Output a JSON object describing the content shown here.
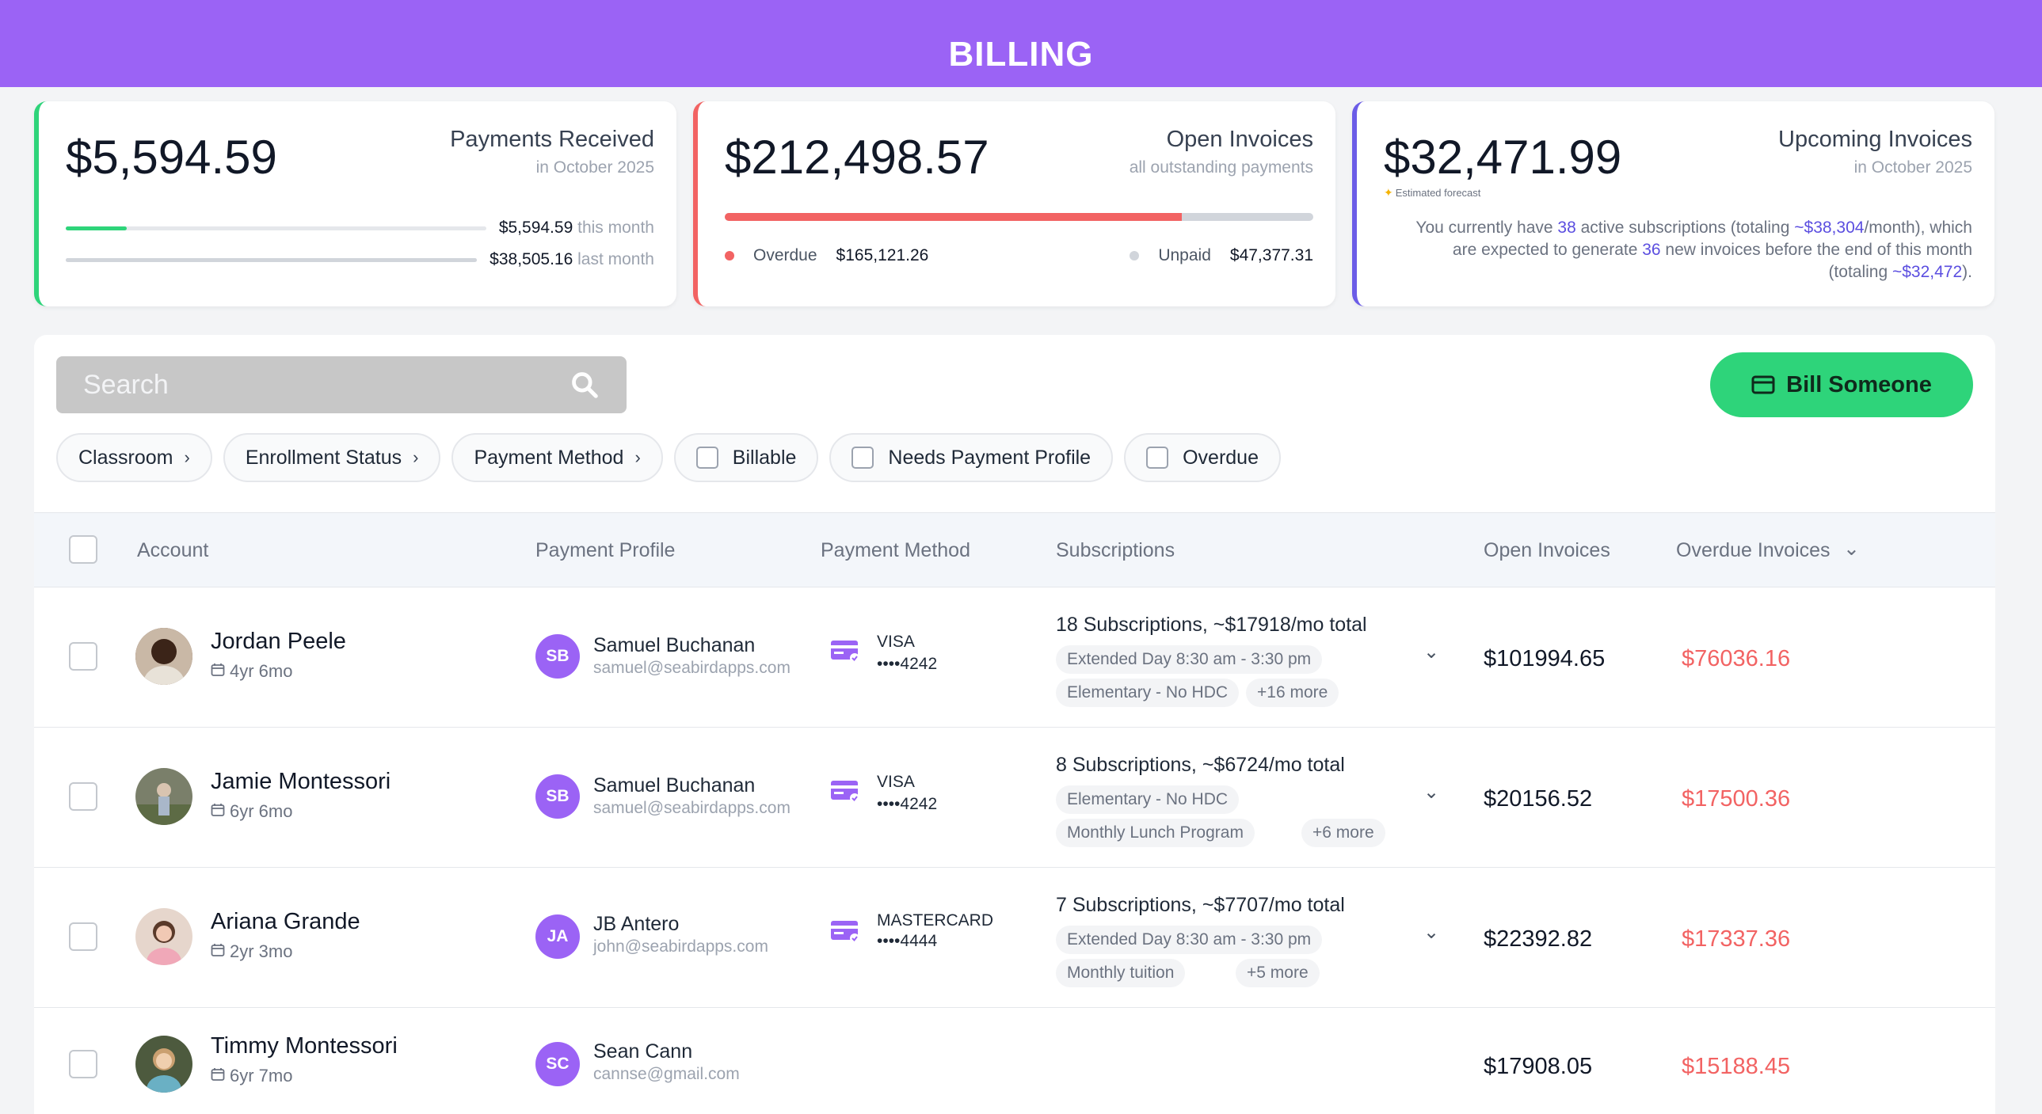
{
  "header": {
    "title": "BILLING"
  },
  "cards": {
    "payments": {
      "amount": "$5,594.59",
      "title": "Payments Received",
      "subtitle": "in October 2025",
      "this_month_value": "$5,594.59",
      "this_month_label": "this month",
      "last_month_value": "$38,505.16",
      "last_month_label": "last month",
      "this_month_fraction": 0.145,
      "last_month_fraction": 1.0,
      "color": "#2ed47a"
    },
    "open": {
      "amount": "$212,498.57",
      "title": "Open Invoices",
      "subtitle": "all outstanding payments",
      "overdue_label": "Overdue",
      "overdue_value": "$165,121.26",
      "unpaid_label": "Unpaid",
      "unpaid_value": "$47,377.31",
      "overdue_fraction": 0.777,
      "color": "#f26363"
    },
    "upcoming": {
      "amount": "$32,471.99",
      "title": "Upcoming Invoices",
      "subtitle": "in October 2025",
      "forecast_label": "Estimated forecast",
      "text_1": "You currently have ",
      "subs_count": "38",
      "text_2": " active subscriptions (totaling ",
      "subs_total": "~$38,304",
      "text_3": "/month), which are expected to generate ",
      "invoice_count": "36",
      "text_4": " new invoices before the end of this month (totaling ",
      "invoice_total": "~$32,472",
      "text_5": ").",
      "color": "#6b5ce7"
    }
  },
  "toolbar": {
    "search_placeholder": "Search",
    "bill_button": "Bill Someone"
  },
  "filters": {
    "classroom": "Classroom",
    "enrollment_status": "Enrollment Status",
    "payment_method": "Payment Method",
    "billable": "Billable",
    "needs_payment_profile": "Needs Payment Profile",
    "overdue": "Overdue"
  },
  "table": {
    "headers": {
      "account": "Account",
      "payment_profile": "Payment Profile",
      "payment_method": "Payment Method",
      "subscriptions": "Subscriptions",
      "open_invoices": "Open Invoices",
      "overdue_invoices": "Overdue Invoices"
    },
    "rows": [
      {
        "name": "Jordan Peele",
        "age": "4yr 6mo",
        "pp_initials": "SB",
        "pp_name": "Samuel Buchanan",
        "pp_email": "samuel@seabirdapps.com",
        "pm_brand": "VISA",
        "pm_number": "••••4242",
        "subs_title": "18 Subscriptions, ~$17918/mo total",
        "tag1": "Extended Day 8:30 am - 3:30 pm",
        "tag2": "Elementary - No HDC",
        "tag3": "+16 more",
        "open": "$101994.65",
        "overdue": "$76036.16"
      },
      {
        "name": "Jamie Montessori",
        "age": "6yr 6mo",
        "pp_initials": "SB",
        "pp_name": "Samuel Buchanan",
        "pp_email": "samuel@seabirdapps.com",
        "pm_brand": "VISA",
        "pm_number": "••••4242",
        "subs_title": "8 Subscriptions, ~$6724/mo total",
        "tag1": "Elementary - No HDC",
        "tag2": "Monthly Lunch Program",
        "tag3": "+6 more",
        "open": "$20156.52",
        "overdue": "$17500.36"
      },
      {
        "name": "Ariana Grande",
        "age": "2yr 3mo",
        "pp_initials": "JA",
        "pp_name": "JB Antero",
        "pp_email": "john@seabirdapps.com",
        "pm_brand": "MASTERCARD",
        "pm_number": "••••4444",
        "subs_title": "7 Subscriptions, ~$7707/mo total",
        "tag1": "Extended Day 8:30 am - 3:30 pm",
        "tag2": "Monthly tuition",
        "tag3": "+5 more",
        "open": "$22392.82",
        "overdue": "$17337.36"
      },
      {
        "name": "Timmy Montessori",
        "age": "6yr 7mo",
        "pp_initials": "SC",
        "pp_name": "Sean Cann",
        "pp_email": "cannse@gmail.com",
        "open": "$17908.05",
        "overdue": "$15188.45"
      }
    ]
  }
}
